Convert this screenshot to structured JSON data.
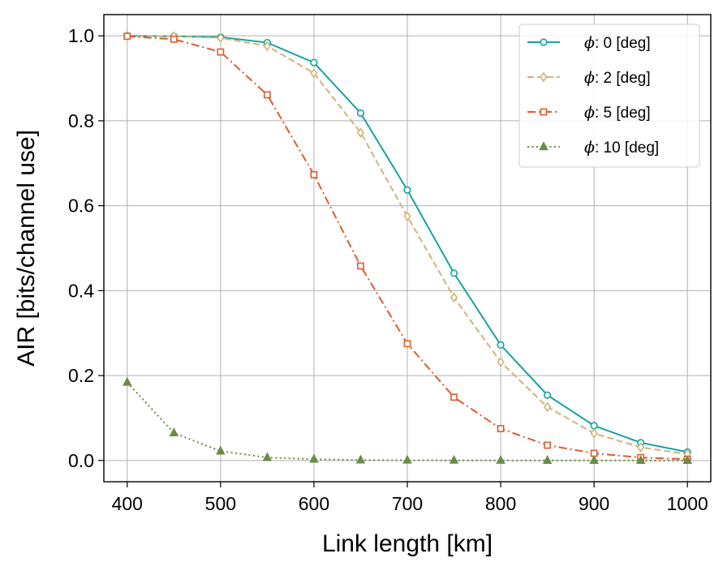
{
  "chart_data": {
    "type": "line",
    "xlabel": "Link length [km]",
    "ylabel": "AIR [bits/channel use]",
    "xlim": [
      375,
      1025
    ],
    "ylim": [
      -0.05,
      1.05
    ],
    "xticks": [
      400,
      500,
      600,
      700,
      800,
      900,
      1000
    ],
    "yticks": [
      0.0,
      0.2,
      0.4,
      0.6,
      0.8,
      1.0
    ],
    "grid": true,
    "legend_position": "top-right",
    "x": [
      400,
      450,
      500,
      550,
      600,
      650,
      700,
      750,
      800,
      850,
      900,
      950,
      1000
    ],
    "series": [
      {
        "symbol": "ϕ",
        "label": ": 0 [deg]",
        "color": "#17a2a0",
        "dash": "solid",
        "marker": "circle",
        "values": [
          1.0,
          0.999,
          0.997,
          0.984,
          0.937,
          0.818,
          0.637,
          0.441,
          0.272,
          0.154,
          0.082,
          0.042,
          0.02
        ]
      },
      {
        "symbol": "ϕ",
        "label": ": 2 [deg]",
        "color": "#d0b47a",
        "dash": "dashed",
        "marker": "diamond",
        "values": [
          1.0,
          0.999,
          0.995,
          0.976,
          0.912,
          0.772,
          0.575,
          0.384,
          0.232,
          0.126,
          0.064,
          0.031,
          0.015
        ]
      },
      {
        "symbol": "ϕ",
        "label": ": 5 [deg]",
        "color": "#e05a2f",
        "dash": "dashdot",
        "marker": "square",
        "values": [
          0.999,
          0.992,
          0.962,
          0.861,
          0.673,
          0.458,
          0.275,
          0.149,
          0.075,
          0.036,
          0.017,
          0.007,
          0.003
        ]
      },
      {
        "symbol": "ϕ",
        "label": ": 10 [deg]",
        "color": "#6b8c46",
        "dash": "dotted",
        "marker": "triangle",
        "values": [
          0.184,
          0.065,
          0.022,
          0.007,
          0.003,
          0.001,
          0.0007,
          0.0004,
          0.0002,
          0.0001,
          0.0001,
          0.0,
          0.0
        ]
      }
    ]
  }
}
